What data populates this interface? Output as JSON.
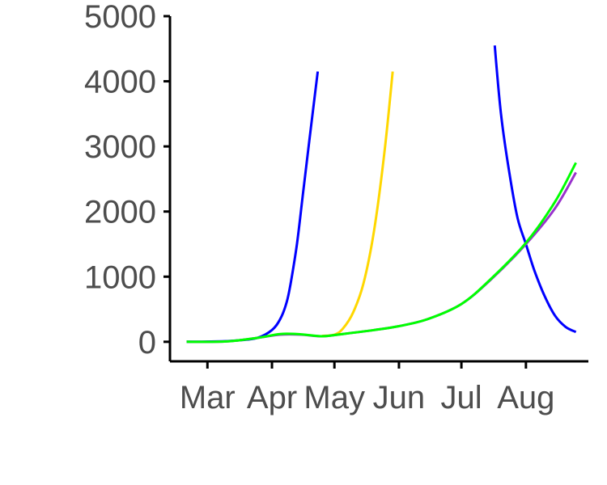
{
  "chart_data": {
    "type": "line",
    "title": "",
    "xlabel": "",
    "ylabel": "",
    "x_ticks": [
      {
        "date": "2020-03-01",
        "label": "Mar"
      },
      {
        "date": "2020-04-01",
        "label": "Apr"
      },
      {
        "date": "2020-05-01",
        "label": "May"
      },
      {
        "date": "2020-06-01",
        "label": "Jun"
      },
      {
        "date": "2020-07-01",
        "label": "Jul"
      },
      {
        "date": "2020-08-01",
        "label": "Aug"
      }
    ],
    "xlim": [
      "2020-02-12",
      "2020-08-31"
    ],
    "ylim": [
      -300,
      5000
    ],
    "y_ticks": [
      0,
      1000,
      2000,
      3000,
      4000,
      5000
    ],
    "grid": false,
    "legend": "none",
    "series": [
      {
        "color": "#0000ff",
        "points": [
          [
            "2020-02-20",
            0
          ],
          [
            "2020-03-05",
            5
          ],
          [
            "2020-03-15",
            20
          ],
          [
            "2020-03-25",
            60
          ],
          [
            "2020-04-01",
            180
          ],
          [
            "2020-04-05",
            350
          ],
          [
            "2020-04-08",
            600
          ],
          [
            "2020-04-10",
            900
          ],
          [
            "2020-04-13",
            1500
          ],
          [
            "2020-04-16",
            2300
          ],
          [
            "2020-04-19",
            3100
          ],
          [
            "2020-04-23",
            4150
          ]
        ]
      },
      {
        "color": "#ffd700",
        "points": [
          [
            "2020-04-25",
            90
          ],
          [
            "2020-05-01",
            110
          ],
          [
            "2020-05-05",
            200
          ],
          [
            "2020-05-10",
            450
          ],
          [
            "2020-05-15",
            900
          ],
          [
            "2020-05-20",
            1700
          ],
          [
            "2020-05-25",
            2900
          ],
          [
            "2020-05-29",
            4150
          ]
        ]
      },
      {
        "color": "#0000ff",
        "points": [
          [
            "2020-07-17",
            4550
          ],
          [
            "2020-07-20",
            3500
          ],
          [
            "2020-07-24",
            2600
          ],
          [
            "2020-07-28",
            1900
          ],
          [
            "2020-08-01",
            1500
          ],
          [
            "2020-08-05",
            1100
          ],
          [
            "2020-08-10",
            700
          ],
          [
            "2020-08-15",
            400
          ],
          [
            "2020-08-20",
            230
          ],
          [
            "2020-08-25",
            150
          ]
        ]
      },
      {
        "color": "#9932cc",
        "points": [
          [
            "2020-02-20",
            0
          ],
          [
            "2020-03-10",
            5
          ],
          [
            "2020-03-25",
            60
          ],
          [
            "2020-04-05",
            110
          ],
          [
            "2020-04-15",
            110
          ],
          [
            "2020-04-25",
            85
          ],
          [
            "2020-05-05",
            120
          ],
          [
            "2020-05-20",
            180
          ],
          [
            "2020-06-01",
            240
          ],
          [
            "2020-06-15",
            350
          ],
          [
            "2020-07-01",
            580
          ],
          [
            "2020-07-15",
            950
          ],
          [
            "2020-08-01",
            1500
          ],
          [
            "2020-08-15",
            2050
          ],
          [
            "2020-08-25",
            2600
          ]
        ]
      },
      {
        "color": "#00ff00",
        "points": [
          [
            "2020-02-20",
            0
          ],
          [
            "2020-03-10",
            5
          ],
          [
            "2020-03-25",
            60
          ],
          [
            "2020-04-05",
            120
          ],
          [
            "2020-04-15",
            115
          ],
          [
            "2020-04-25",
            85
          ],
          [
            "2020-05-05",
            120
          ],
          [
            "2020-05-20",
            180
          ],
          [
            "2020-06-01",
            240
          ],
          [
            "2020-06-15",
            350
          ],
          [
            "2020-07-01",
            580
          ],
          [
            "2020-07-15",
            960
          ],
          [
            "2020-08-01",
            1520
          ],
          [
            "2020-08-15",
            2150
          ],
          [
            "2020-08-25",
            2750
          ]
        ]
      }
    ]
  }
}
